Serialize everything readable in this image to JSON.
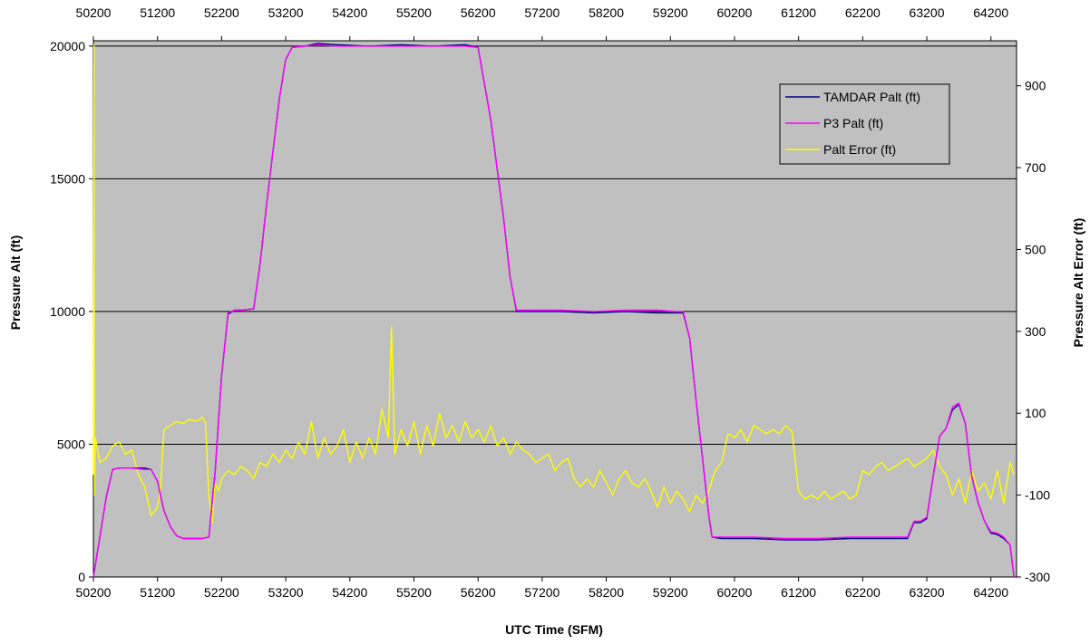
{
  "chart_data": {
    "type": "line",
    "xlabel": "UTC Time (SFM)",
    "ylabel": "Pressure Alt (ft)",
    "y2label": "Pressure Alt Error (ft)",
    "xlim": [
      50200,
      64600
    ],
    "ylim": [
      0,
      20200
    ],
    "y2lim": [
      -300,
      1010
    ],
    "x_ticks": [
      50200,
      51200,
      52200,
      53200,
      54200,
      55200,
      56200,
      57200,
      58200,
      59200,
      60200,
      61200,
      62200,
      63200,
      64200
    ],
    "y_ticks": [
      0,
      5000,
      10000,
      15000,
      20000
    ],
    "y2_ticks": [
      -300,
      -100,
      100,
      300,
      500,
      700,
      900
    ],
    "grid": "horizontal major lines at primary y ticks",
    "legend_position": "top-right",
    "colors": {
      "plot_bg": "#c0c0c0",
      "TAMDAR": "#000080",
      "P3": "#ff00ff",
      "Error": "#ffff00"
    },
    "series": [
      {
        "name": "TAMDAR Palt (ft)",
        "axis": "left",
        "color": "#000080",
        "x": [
          50200,
          50300,
          50400,
          50500,
          50600,
          50800,
          51000,
          51100,
          51200,
          51300,
          51400,
          51500,
          51600,
          51700,
          51900,
          52000,
          52100,
          52200,
          52300,
          52400,
          52500,
          52700,
          52800,
          52900,
          53000,
          53100,
          53200,
          53300,
          53500,
          53700,
          54000,
          54500,
          55000,
          55500,
          56000,
          56200,
          56400,
          56600,
          56700,
          56800,
          57000,
          57500,
          58000,
          58500,
          59000,
          59300,
          59400,
          59500,
          59600,
          59700,
          59800,
          59850,
          60000,
          60500,
          61000,
          61500,
          62000,
          62500,
          62800,
          62900,
          63000,
          63100,
          63200,
          63300,
          63400,
          63500,
          63600,
          63700,
          63800,
          63900,
          64000,
          64100,
          64200,
          64300,
          64400,
          64500,
          64560
        ],
        "y": [
          0,
          1500,
          3000,
          4050,
          4100,
          4100,
          4100,
          4050,
          3600,
          2500,
          1900,
          1550,
          1450,
          1450,
          1450,
          1500,
          4000,
          7600,
          9900,
          10050,
          10050,
          10100,
          11800,
          14000,
          16000,
          18000,
          19500,
          19950,
          20000,
          20100,
          20050,
          20000,
          20050,
          20000,
          20050,
          19950,
          17200,
          13500,
          11300,
          10000,
          10000,
          10000,
          9950,
          10000,
          9950,
          9950,
          9950,
          9000,
          6700,
          4500,
          2300,
          1500,
          1450,
          1450,
          1400,
          1400,
          1450,
          1450,
          1450,
          1450,
          2050,
          2050,
          2200,
          3800,
          5300,
          5600,
          6300,
          6500,
          5800,
          3800,
          2800,
          2100,
          1650,
          1600,
          1450,
          1200,
          0
        ]
      },
      {
        "name": "P3 Palt (ft)",
        "axis": "left",
        "color": "#ff00ff",
        "x": [
          50200,
          50300,
          50400,
          50500,
          50600,
          50800,
          51000,
          51100,
          51200,
          51300,
          51400,
          51500,
          51600,
          51700,
          51900,
          52000,
          52100,
          52200,
          52300,
          52400,
          52500,
          52700,
          52800,
          52900,
          53000,
          53100,
          53200,
          53300,
          53500,
          53700,
          54000,
          54500,
          55000,
          55500,
          56000,
          56200,
          56400,
          56600,
          56700,
          56800,
          57000,
          57500,
          58000,
          58500,
          59000,
          59300,
          59400,
          59500,
          59600,
          59700,
          59800,
          59850,
          60000,
          60500,
          61000,
          61500,
          62000,
          62500,
          62800,
          62900,
          63000,
          63100,
          63200,
          63300,
          63400,
          63500,
          63600,
          63700,
          63800,
          63900,
          64000,
          64100,
          64200,
          64300,
          64400,
          64500,
          64560
        ],
        "y": [
          0,
          1500,
          3000,
          4050,
          4100,
          4100,
          4050,
          4050,
          3600,
          2500,
          1900,
          1550,
          1450,
          1450,
          1450,
          1500,
          4000,
          7600,
          9950,
          10050,
          10050,
          10100,
          11800,
          14000,
          16000,
          18000,
          19500,
          19950,
          20000,
          20050,
          20000,
          20000,
          20000,
          20000,
          20000,
          19950,
          17200,
          13500,
          11300,
          10050,
          10050,
          10050,
          10000,
          10050,
          10050,
          10000,
          10000,
          9000,
          6700,
          4500,
          2300,
          1500,
          1500,
          1500,
          1450,
          1450,
          1500,
          1500,
          1500,
          1500,
          2100,
          2100,
          2250,
          3800,
          5300,
          5600,
          6400,
          6550,
          5800,
          3800,
          2800,
          2100,
          1700,
          1650,
          1500,
          1200,
          0
        ]
      },
      {
        "name": "Palt Error (ft)",
        "axis": "right",
        "color": "#ffff00",
        "x": [
          50200,
          50210,
          50215,
          50230,
          50300,
          50400,
          50500,
          50600,
          50700,
          50800,
          50900,
          51000,
          51100,
          51200,
          51250,
          51300,
          51400,
          51500,
          51600,
          51700,
          51800,
          51900,
          51950,
          52000,
          52050,
          52100,
          52150,
          52200,
          52300,
          52400,
          52500,
          52600,
          52700,
          52800,
          52900,
          53000,
          53100,
          53200,
          53300,
          53400,
          53500,
          53600,
          53700,
          53800,
          53900,
          54000,
          54100,
          54200,
          54300,
          54400,
          54500,
          54600,
          54700,
          54800,
          54850,
          54900,
          55000,
          55100,
          55200,
          55300,
          55400,
          55500,
          55600,
          55700,
          55800,
          55900,
          56000,
          56100,
          56200,
          56300,
          56400,
          56500,
          56600,
          56700,
          56800,
          56900,
          57000,
          57100,
          57200,
          57300,
          57400,
          57500,
          57600,
          57700,
          57800,
          57900,
          58000,
          58100,
          58200,
          58300,
          58400,
          58500,
          58600,
          58700,
          58800,
          58900,
          59000,
          59100,
          59200,
          59300,
          59400,
          59500,
          59600,
          59700,
          59800,
          59900,
          60000,
          60100,
          60200,
          60300,
          60400,
          60500,
          60600,
          60700,
          60800,
          60900,
          61000,
          61100,
          61200,
          61300,
          61400,
          61500,
          61600,
          61700,
          61800,
          61900,
          62000,
          62100,
          62200,
          62300,
          62400,
          62500,
          62600,
          62700,
          62800,
          62900,
          63000,
          63100,
          63200,
          63300,
          63400,
          63500,
          63600,
          63700,
          63800,
          63900,
          64000,
          64100,
          64200,
          64300,
          64400,
          64500,
          64560
        ],
        "y": [
          -50,
          1000,
          -100,
          40,
          -20,
          -10,
          20,
          30,
          0,
          10,
          -50,
          -80,
          -150,
          -130,
          -80,
          60,
          70,
          80,
          75,
          85,
          80,
          90,
          75,
          -100,
          -170,
          -70,
          -90,
          -60,
          -40,
          -50,
          -30,
          -40,
          -60,
          -20,
          -30,
          0,
          -20,
          10,
          -10,
          30,
          0,
          80,
          -10,
          40,
          0,
          20,
          60,
          -20,
          30,
          -10,
          40,
          0,
          110,
          40,
          310,
          0,
          60,
          20,
          80,
          0,
          70,
          20,
          100,
          40,
          70,
          30,
          80,
          40,
          60,
          30,
          70,
          20,
          40,
          0,
          30,
          10,
          0,
          -20,
          -10,
          0,
          -40,
          -20,
          -10,
          -60,
          -80,
          -60,
          -80,
          -40,
          -70,
          -100,
          -60,
          -40,
          -70,
          -80,
          -60,
          -90,
          -130,
          -80,
          -120,
          -90,
          -110,
          -140,
          -100,
          -120,
          -90,
          -40,
          -20,
          50,
          40,
          60,
          30,
          70,
          60,
          50,
          60,
          50,
          70,
          55,
          -90,
          -110,
          -100,
          -110,
          -90,
          -110,
          -100,
          -90,
          -110,
          -100,
          -40,
          -50,
          -30,
          -20,
          -40,
          -30,
          -20,
          -10,
          -30,
          -20,
          -10,
          10,
          -30,
          -50,
          -100,
          -60,
          -120,
          -40,
          -90,
          -70,
          -110,
          -40,
          -120,
          -20,
          -50
        ]
      }
    ]
  }
}
